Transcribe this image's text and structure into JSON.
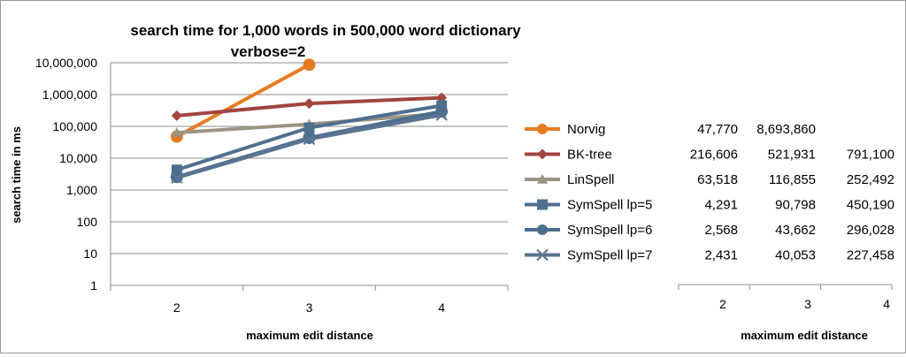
{
  "chart_data": {
    "type": "line",
    "title": "search time for 1,000 words in 500,000 word dictionary",
    "subtitle": "verbose=2",
    "xlabel": "maximum edit distance",
    "ylabel": "search time in ms",
    "yscale": "log",
    "ylim": [
      1,
      10000000
    ],
    "yticks": [
      "10,000,000",
      "1,000,000",
      "100,000",
      "10,000",
      "1,000",
      "100",
      "10",
      "1"
    ],
    "categories": [
      "2",
      "3",
      "4"
    ],
    "grid": "horizontal",
    "legend_placement": "right, as data table",
    "series": [
      {
        "name": "Norvig",
        "color": "#e57c24",
        "marker": "circle",
        "values": [
          47770,
          8693860,
          null
        ],
        "labels": [
          "47,770",
          "8,693,860",
          ""
        ]
      },
      {
        "name": "BK-tree",
        "color": "#a0453f",
        "marker": "diamond",
        "values": [
          216606,
          521931,
          791100
        ],
        "labels": [
          "216,606",
          "521,931",
          "791,100"
        ]
      },
      {
        "name": "LinSpell",
        "color": "#9a9484",
        "marker": "triangle",
        "values": [
          63518,
          116855,
          252492
        ],
        "labels": [
          "63,518",
          "116,855",
          "252,492"
        ]
      },
      {
        "name": "SymSpell lp=5",
        "color": "#4f6f8f",
        "marker": "square",
        "values": [
          4291,
          90798,
          450190
        ],
        "labels": [
          "4,291",
          "90,798",
          "450,190"
        ]
      },
      {
        "name": "SymSpell lp=6",
        "color": "#4a6e8e",
        "marker": "circle",
        "values": [
          2568,
          43662,
          296028
        ],
        "labels": [
          "2,568",
          "43,662",
          "296,028"
        ]
      },
      {
        "name": "SymSpell lp=7",
        "color": "#5a7390",
        "marker": "x",
        "values": [
          2431,
          40053,
          227458
        ],
        "labels": [
          "2,431",
          "40,053",
          "227,458"
        ]
      }
    ],
    "table_xlabel": "maximum edit distance"
  }
}
